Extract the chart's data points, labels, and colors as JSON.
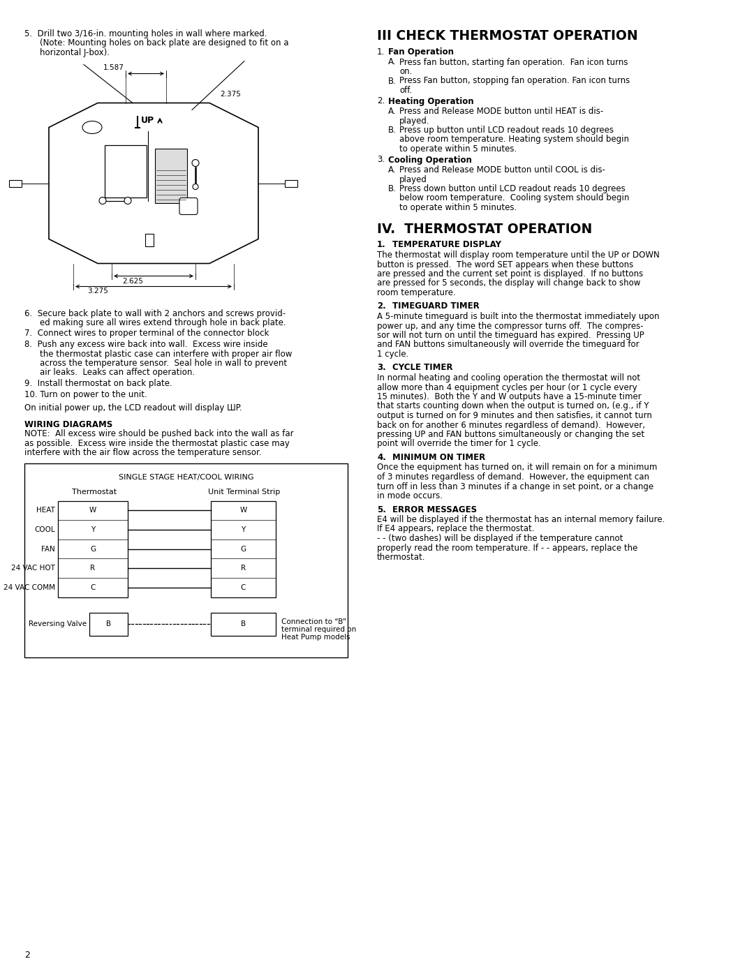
{
  "page_bg": "#ffffff",
  "text_color": "#000000",
  "page_number": "2",
  "left_col": {
    "item5_lines": [
      "5.  Drill two 3/16-in. mounting holes in wall where marked.",
      "(Note: Mounting holes on back plate are designed to fit on a",
      "horizontal J-box)."
    ],
    "item6_lines": [
      "6.  Secure back plate to wall with 2 anchors and screws provid-",
      "ed making sure all wires extend through hole in back plate."
    ],
    "item7": "7.  Connect wires to proper terminal of the connector block",
    "item8_lines": [
      "8.  Push any excess wire back into wall.  Excess wire inside",
      "the thermostat plastic case can interfere with proper air flow",
      "across the temperature sensor.  Seal hole in wall to prevent",
      "air leaks.  Leaks can affect operation."
    ],
    "item9": "9.  Install thermostat on back plate.",
    "item10": "10. Turn on power to the unit.",
    "power": "On initial power up, the LCD readout will display ШP.",
    "wiring_header": "WIRING DIAGRAMS",
    "wiring_note_lines": [
      "NOTE:  All excess wire should be pushed back into the wall as far",
      "as possible.  Excess wire inside the thermostat plastic case may",
      "interfere with the air flow across the temperature sensor."
    ],
    "diagram_title": "SINGLE STAGE HEAT/COOL WIRING",
    "thermostat_label": "Thermostat",
    "unit_label": "Unit Terminal Strip",
    "wiring_rows": [
      "HEAT",
      "COOL",
      "FAN",
      "24 VAC HOT",
      "24 VAC COMM"
    ],
    "wiring_terminals": [
      "W",
      "Y",
      "G",
      "R",
      "C"
    ],
    "reversing_label": "Reversing Valve",
    "reversing_terminal": "B",
    "connection_note_lines": [
      "Connection to “B”",
      "terminal required on",
      "Heat Pump models"
    ],
    "dim_1587": "1.587",
    "dim_2375": "2.375",
    "dim_2625": "2.625",
    "dim_3275": "3.275"
  },
  "right_col": {
    "sec3_header": "III CHECK THERMOSTAT OPERATION",
    "sec3_items": [
      {
        "num": "1.",
        "bold": "Fan Operation",
        "subs": [
          {
            "let": "A.",
            "lines": [
              "Press fan button, starting fan operation.  Fan icon turns",
              "on."
            ]
          },
          {
            "let": "B.",
            "lines": [
              "Press Fan button, stopping fan operation. Fan icon turns",
              "off."
            ]
          }
        ]
      },
      {
        "num": "2.",
        "bold": "Heating Operation",
        "subs": [
          {
            "let": "A.",
            "lines": [
              "Press and Release MODE button until HEAT is dis-",
              "played."
            ]
          },
          {
            "let": "B.",
            "lines": [
              "Press up button until LCD readout reads 10 degrees",
              "above room temperature. Heating system should begin",
              "to operate within 5 minutes."
            ]
          }
        ]
      },
      {
        "num": "3.",
        "bold": "Cooling Operation",
        "subs": [
          {
            "let": "A.",
            "lines": [
              "Press and Release MODE button until COOL is dis-",
              "played"
            ]
          },
          {
            "let": "B.",
            "lines": [
              "Press down button until LCD readout reads 10 degrees",
              "below room temperature.  Cooling system should begin",
              "to operate within 5 minutes."
            ]
          }
        ]
      }
    ],
    "sec4_header": "IV.  THERMOSTAT OPERATION",
    "sec4_items": [
      {
        "num": "1.",
        "bold": "TEMPERATURE DISPLAY",
        "body_lines": [
          "The thermostat will display room temperature until the UP or DOWN",
          "button is pressed.  The word SET appears when these buttons",
          "are pressed and the current set point is displayed.  If no buttons",
          "are pressed for 5 seconds, the display will change back to show",
          "room temperature."
        ]
      },
      {
        "num": "2.",
        "bold": "TIMEGUARD TIMER",
        "body_lines": [
          "A 5-minute timeguard is built into the thermostat immediately upon",
          "power up, and any time the compressor turns off.  The compres-",
          "sor will not turn on until the timeguard has expired.  Pressing UP",
          "and FAN buttons simultaneously will override the timeguard for",
          "1 cycle."
        ]
      },
      {
        "num": "3.",
        "bold": "CYCLE TIMER",
        "body_lines": [
          "In normal heating and cooling operation the thermostat will not",
          "allow more than 4 equipment cycles per hour (or 1 cycle every",
          "15 minutes).  Both the Y and W outputs have a 15-minute timer",
          "that starts counting down when the output is turned on, (e.g., if Y",
          "output is turned on for 9 minutes and then satisfies, it cannot turn",
          "back on for another 6 minutes regardless of demand).  However,",
          "pressing UP and FAN buttons simultaneously or changing the set",
          "point will override the timer for 1 cycle."
        ]
      },
      {
        "num": "4.",
        "bold": "MINIMUM ON TIMER",
        "body_lines": [
          "Once the equipment has turned on, it will remain on for a minimum",
          "of 3 minutes regardless of demand.  However, the equipment can",
          "turn off in less than 3 minutes if a change in set point, or a change",
          "in mode occurs."
        ]
      },
      {
        "num": "5.",
        "bold": "ERROR MESSAGES",
        "body_lines": [
          "E4 will be displayed if the thermostat has an internal memory failure.",
          "If E4 appears, replace the thermostat.",
          "- - (two dashes) will be displayed if the temperature cannot",
          "properly read the room temperature. If - - appears, replace the",
          "thermostat."
        ]
      }
    ]
  }
}
